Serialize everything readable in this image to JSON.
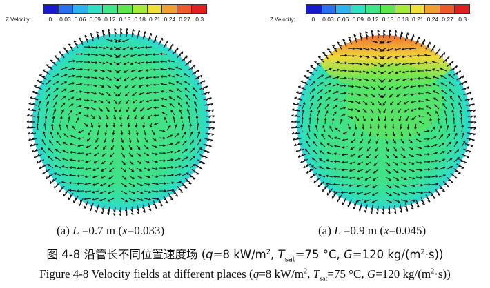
{
  "colormap": [
    "#1a1acc",
    "#2a6ff0",
    "#2bb4f0",
    "#2fe0c4",
    "#3ee88a",
    "#5ae84a",
    "#a6ea3a",
    "#f0e03a",
    "#f0a030",
    "#ee5a2a",
    "#e02020"
  ],
  "panels": [
    {
      "id": "a",
      "colorbar_title": "Z Velocity:",
      "ticks": [
        "0",
        "0.03",
        "0.06",
        "0.09",
        "0.12",
        "0.15",
        "0.18",
        "0.21",
        "0.24",
        "0.27",
        "0.3"
      ],
      "caption": {
        "prefix": "(a) ",
        "var": "L",
        "value": " =0.7 m (",
        "xvar": "x",
        "xval": "=0.033)"
      }
    },
    {
      "id": "b",
      "colorbar_title": "Z Velocity:",
      "ticks": [
        "0",
        "0.03",
        "0.06",
        "0.09",
        "0.12",
        "0.15",
        "0.18",
        "0.21",
        "0.24",
        "0.27",
        "0.3"
      ],
      "caption": {
        "prefix": "(a) ",
        "var": "L",
        "value": " =0.9 m (",
        "xvar": "x",
        "xval": "=0.045)"
      }
    }
  ],
  "figure_caption_zh": {
    "label": "图 4-8  沿管长不同位置速度场",
    "open": "  (",
    "q": "q",
    "q_val": "=8 kW/m",
    "q_sup": "2",
    "sep1": ", ",
    "T": "T",
    "T_sub": "sat",
    "T_val": "=75 °C, ",
    "G": "G",
    "G_val": "=120 kg/(m",
    "G_sup": "2",
    "G_end": "·s))"
  },
  "figure_caption_en": {
    "label": "Figure 4-8 Velocity fields at different places ",
    "open": "(",
    "q": "q",
    "q_val": "=8 kW/m",
    "q_sup": "2",
    "sep1": ", ",
    "T": "T",
    "T_sub": "sat",
    "T_val": "=75 °C, ",
    "G": "G",
    "G_val": "=120 kg/(m",
    "G_sup": "2",
    "G_end": "·s))"
  }
}
